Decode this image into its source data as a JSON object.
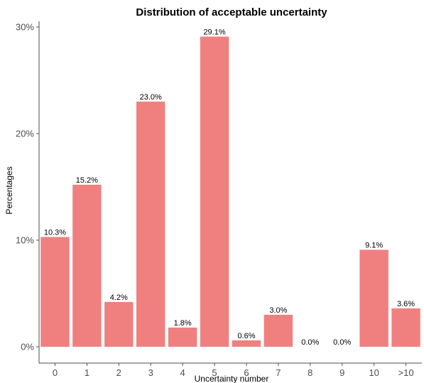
{
  "chart_data": {
    "type": "bar",
    "title": "Distribution of acceptable uncertainty",
    "xlabel": "Uncertainty number",
    "ylabel": "Percentages",
    "categories": [
      "0",
      "1",
      "2",
      "3",
      "4",
      "5",
      "6",
      "7",
      "8",
      "9",
      "10",
      ">10"
    ],
    "values": [
      10.3,
      15.2,
      4.2,
      23.0,
      1.8,
      29.1,
      0.6,
      3.0,
      0.0,
      0.0,
      9.1,
      3.6
    ],
    "value_labels": [
      "10.3%",
      "15.2%",
      "4.2%",
      "23.0%",
      "1.8%",
      "29.1%",
      "0.6%",
      "3.0%",
      "0.0%",
      "0.0%",
      "9.1%",
      "3.6%"
    ],
    "ylim": [
      0,
      30
    ],
    "y_ticks": [
      0,
      10,
      20,
      30
    ],
    "y_tick_labels": [
      "0%",
      "10%",
      "20%",
      "30%"
    ],
    "bar_color": "#f08080",
    "grid": false
  }
}
